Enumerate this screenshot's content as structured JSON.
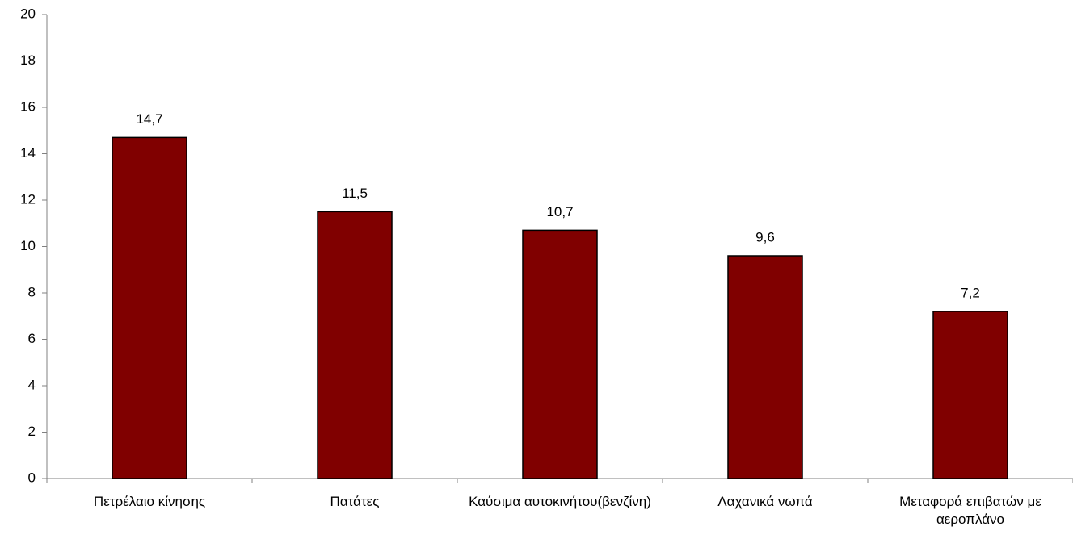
{
  "chart_data": {
    "type": "bar",
    "categories": [
      "Πετρέλαιο κίνησης",
      "Πατάτες",
      "Καύσιμα αυτοκινήτου(βενζίνη)",
      "Λαχανικά νωπά",
      "Μεταφορά επιβατών με αεροπλάνο"
    ],
    "values": [
      14.7,
      11.5,
      10.7,
      9.6,
      7.2
    ],
    "value_labels": [
      "14,7",
      "11,5",
      "10,7",
      "9,6",
      "7,2"
    ],
    "color": "#800000",
    "ylim": [
      0,
      20
    ],
    "yticks": [
      0,
      2,
      4,
      6,
      8,
      10,
      12,
      14,
      16,
      18,
      20
    ],
    "grid": false
  }
}
